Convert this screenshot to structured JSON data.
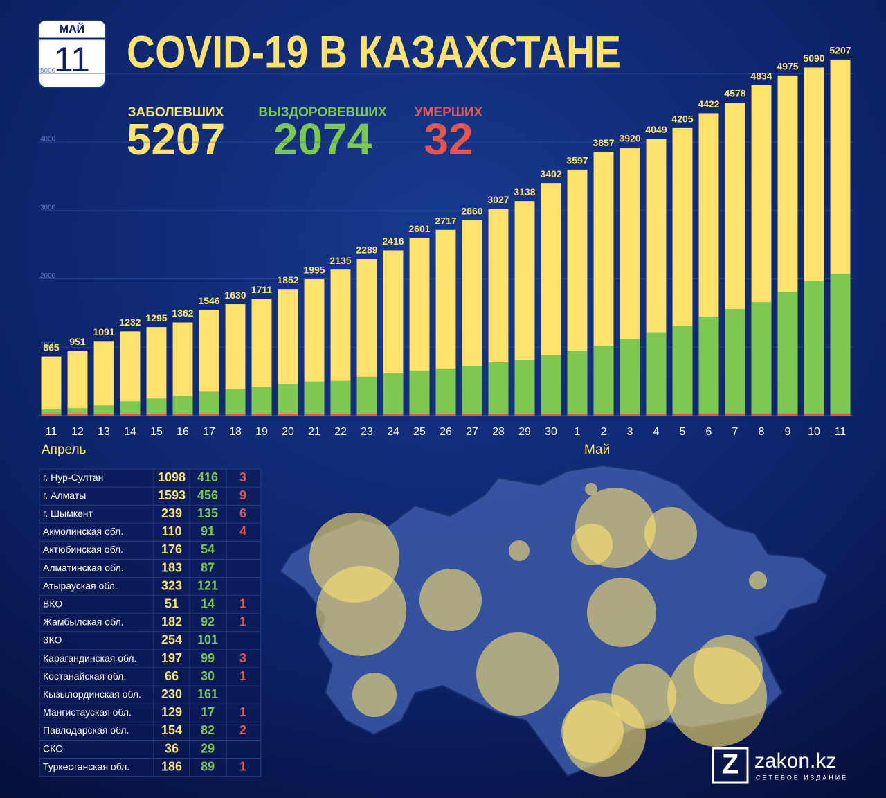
{
  "header": {
    "month": "МАЙ",
    "day": "11",
    "title": "COVID-19 В КАЗАХСТАНЕ"
  },
  "chart_data": {
    "type": "bar",
    "categories": [
      "11",
      "12",
      "13",
      "14",
      "15",
      "16",
      "17",
      "18",
      "19",
      "20",
      "21",
      "22",
      "23",
      "24",
      "25",
      "26",
      "27",
      "28",
      "29",
      "30",
      "1",
      "2",
      "3",
      "4",
      "5",
      "6",
      "7",
      "8",
      "9",
      "10",
      "11"
    ],
    "annotations": [
      {
        "text": "Апрель",
        "at": 0
      },
      {
        "text": "Май",
        "at": 20
      }
    ],
    "series": [
      {
        "name": "ЗАБОЛЕВШИХ",
        "color": "#fde36e",
        "values": [
          865,
          951,
          1091,
          1232,
          1295,
          1362,
          1546,
          1630,
          1711,
          1852,
          1995,
          2135,
          2289,
          2416,
          2601,
          2717,
          2860,
          3027,
          3138,
          3402,
          3597,
          3857,
          3920,
          4049,
          4205,
          4422,
          4578,
          4834,
          4975,
          5090,
          5207
        ]
      },
      {
        "name": "ВЫЗДОРОВЕВШИХ",
        "color": "#7ec850",
        "values": [
          90,
          110,
          150,
          210,
          250,
          290,
          350,
          390,
          420,
          460,
          500,
          510,
          570,
          620,
          660,
          690,
          730,
          780,
          820,
          890,
          950,
          1020,
          1120,
          1210,
          1310,
          1450,
          1560,
          1660,
          1810,
          1970,
          2074
        ]
      },
      {
        "name": "УМЕРШИХ",
        "color": "#e8564a",
        "values": [
          10,
          10,
          10,
          12,
          13,
          14,
          15,
          17,
          17,
          19,
          19,
          19,
          20,
          25,
          25,
          25,
          25,
          25,
          25,
          25,
          25,
          25,
          25,
          25,
          30,
          31,
          31,
          31,
          32,
          31,
          32
        ]
      }
    ],
    "ylim": [
      0,
      5500
    ],
    "yticks": [
      1000,
      2000,
      3000,
      4000,
      5000
    ],
    "grid": true
  },
  "table": {
    "rows": [
      [
        "г. Нур-Султан",
        1098,
        416,
        3
      ],
      [
        "г. Алматы",
        1593,
        456,
        9
      ],
      [
        "г. Шымкент",
        239,
        135,
        6
      ],
      [
        "Акмолинская обл.",
        110,
        91,
        4
      ],
      [
        "Актюбинская обл.",
        176,
        54,
        null
      ],
      [
        "Алматинская обл.",
        183,
        87,
        null
      ],
      [
        "Атырауская обл.",
        323,
        121,
        null
      ],
      [
        "ВКО",
        51,
        14,
        1
      ],
      [
        "Жамбылская обл.",
        182,
        92,
        1
      ],
      [
        "ЗКО",
        254,
        101,
        null
      ],
      [
        "Карагандинская обл.",
        197,
        99,
        3
      ],
      [
        "Костанайская обл.",
        66,
        30,
        1
      ],
      [
        "Кызылординская обл.",
        230,
        161,
        null
      ],
      [
        "Мангистауская обл.",
        129,
        17,
        1
      ],
      [
        "Павлодарская обл.",
        154,
        82,
        2
      ],
      [
        "СКО",
        36,
        29,
        null
      ],
      [
        "Туркестанская обл.",
        186,
        89,
        1
      ]
    ]
  },
  "logo": {
    "mark": "Z",
    "name": "zakon.kz",
    "tagline": "СЕТЕВОЕ ИЗДАНИЕ"
  }
}
